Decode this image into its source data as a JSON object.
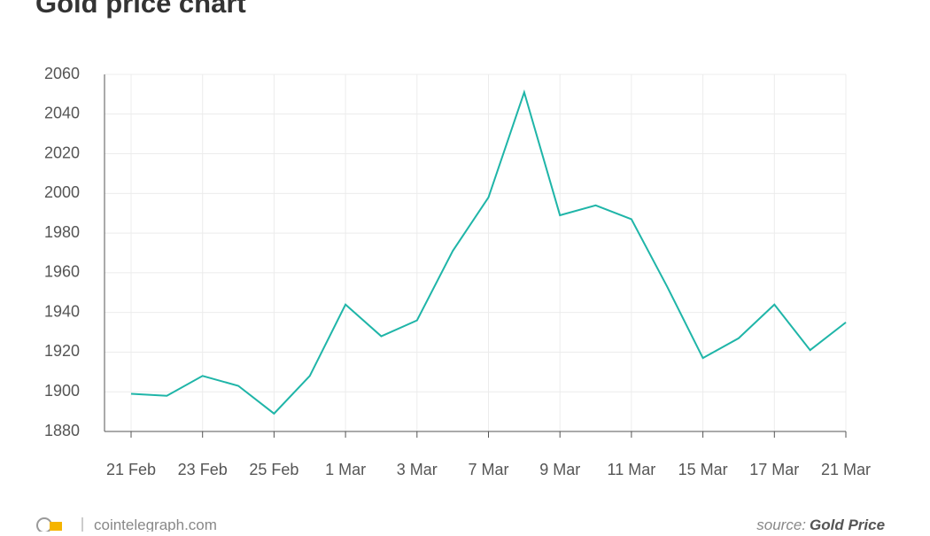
{
  "chart_data": {
    "type": "line",
    "title": "Gold price chart",
    "categories": [
      "21 Feb",
      null,
      "23 Feb",
      null,
      "25 Feb",
      null,
      "1 Mar",
      null,
      "3 Mar",
      null,
      "7 Mar",
      null,
      "9 Mar",
      null,
      "11 Mar",
      null,
      "15 Mar",
      null,
      "17 Mar",
      null,
      "21 Mar"
    ],
    "series": [
      {
        "name": "Gold price",
        "color": "#1fb5a8",
        "values": [
          1899,
          1898,
          1908,
          1903,
          1889,
          1908,
          1944,
          1928,
          1936,
          1971,
          1998,
          2051,
          1989,
          1994,
          1987,
          1953,
          1917,
          1927,
          1944,
          1921,
          1935
        ]
      }
    ],
    "ylim": [
      1880,
      2060
    ],
    "yticks": [
      1880,
      1900,
      1920,
      1940,
      1960,
      1980,
      2000,
      2020,
      2040,
      2060
    ],
    "grid": true
  },
  "footer": {
    "site": "cointelegraph.com",
    "source_label": "source:",
    "source_name": "Gold Price"
  }
}
